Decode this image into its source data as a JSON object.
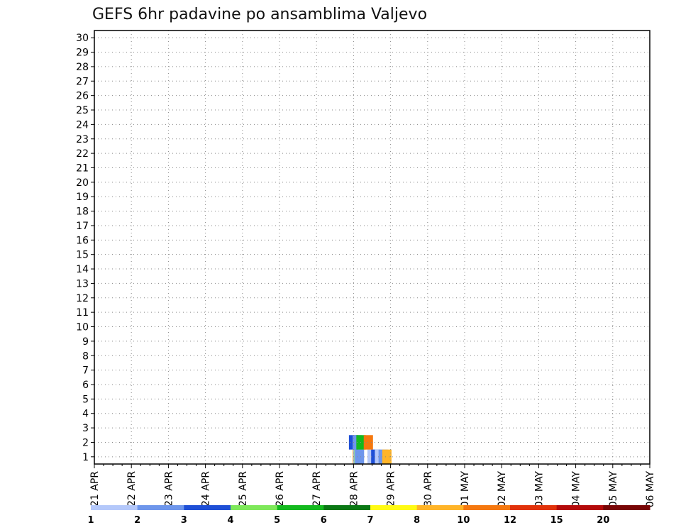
{
  "chart_data": {
    "type": "heatmap",
    "title": "GEFS 6hr padavine po ansamblima Valjevo",
    "xlabel": "",
    "ylabel": "",
    "x_tick_labels": [
      "21 APR",
      "22 APR",
      "23 APR",
      "24 APR",
      "25 APR",
      "26 APR",
      "27 APR",
      "28 APR",
      "29 APR",
      "30 APR",
      "01 MAY",
      "02 MAY",
      "03 MAY",
      "04 MAY",
      "05 MAY",
      "06 MAY"
    ],
    "y_tick_labels": [
      "1",
      "2",
      "3",
      "4",
      "5",
      "6",
      "7",
      "8",
      "9",
      "10",
      "11",
      "12",
      "13",
      "14",
      "15",
      "16",
      "17",
      "18",
      "19",
      "20",
      "21",
      "22",
      "23",
      "24",
      "25",
      "26",
      "27",
      "28",
      "29",
      "30"
    ],
    "grid": true,
    "colorbar": {
      "labels": [
        "1",
        "2",
        "3",
        "4",
        "5",
        "6",
        "7",
        "8",
        "10",
        "12",
        "15",
        "20"
      ],
      "colors": [
        "#b4c8fa",
        "#6e96eb",
        "#1e4fd6",
        "#7ee85a",
        "#14b91e",
        "#0a7814",
        "#fffa14",
        "#ffb428",
        "#f5780f",
        "#e1320a",
        "#b40a0a",
        "#780505"
      ]
    },
    "cells": [
      [
        7.5,
        1,
        1
      ],
      [
        7.6,
        1,
        3
      ],
      [
        7.7,
        1,
        1
      ],
      [
        7.8,
        1,
        2
      ],
      [
        7.9,
        1,
        8
      ],
      [
        7.1,
        1,
        8
      ],
      [
        7.12,
        1,
        1
      ],
      [
        7.13,
        1,
        2
      ],
      [
        7.14,
        1,
        4
      ],
      [
        7.15,
        1,
        1
      ],
      [
        7.16,
        1,
        2
      ],
      [
        7.0,
        2,
        3
      ],
      [
        7.1,
        2,
        2
      ],
      [
        7.2,
        2,
        5
      ],
      [
        7.4,
        2,
        9
      ]
    ]
  }
}
